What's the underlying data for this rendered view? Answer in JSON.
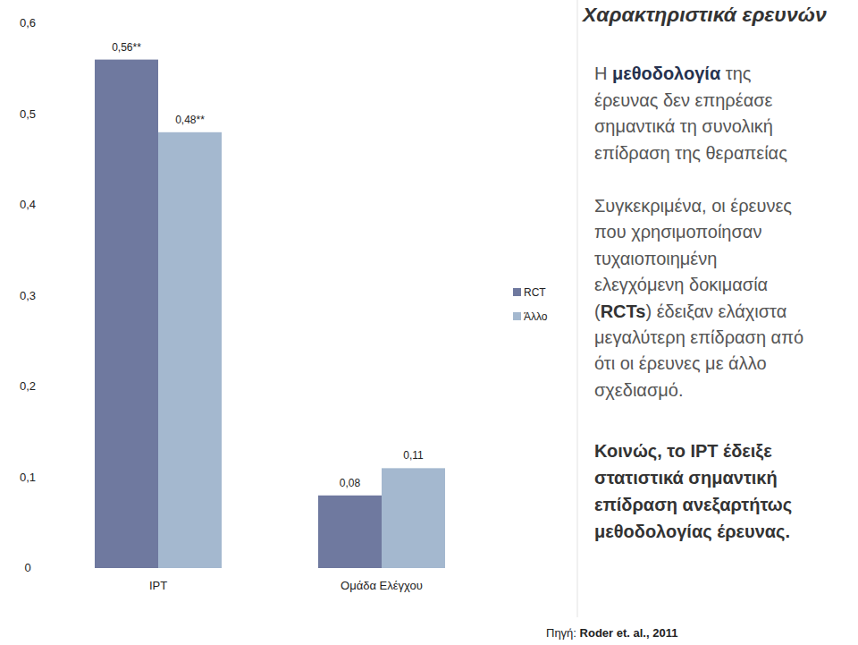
{
  "chart_data": {
    "type": "bar",
    "categories": [
      "IPT",
      "Ομάδα Ελέγχου"
    ],
    "series": [
      {
        "name": "RCT",
        "color": "#6f799f",
        "values": [
          0.56,
          0.08
        ],
        "value_labels": [
          "0,56**",
          "0,08"
        ]
      },
      {
        "name": "Άλλο",
        "color": "#a4b8cf",
        "values": [
          0.48,
          0.11
        ],
        "value_labels": [
          "0,48**",
          "0,11"
        ]
      }
    ],
    "ylim": [
      0,
      0.6
    ],
    "yticks": [
      0,
      {
        "value": 0.1,
        "label": "0,1"
      },
      {
        "value": 0.2,
        "label": "0,2"
      },
      {
        "value": 0.3,
        "label": "0,3"
      },
      {
        "value": 0.4,
        "label": "0,4"
      },
      {
        "value": 0.5,
        "label": "0,5"
      },
      {
        "value": 0.6,
        "label": "0,6"
      }
    ],
    "grid": false,
    "legend": "right",
    "data_labels": true
  },
  "text_panel": {
    "title": "Χαρακτηριστικά ερευνών",
    "paragraphs": [
      {
        "lines": [
          [
            {
              "text": "Η "
            },
            {
              "text": "μεθοδολογία",
              "bold": true
            },
            {
              "text": " της"
            }
          ],
          [
            {
              "text": "έρευνας δεν επηρέασε"
            }
          ],
          [
            {
              "text": "σημαντικά τη συνολική"
            }
          ],
          [
            {
              "text": "επίδραση της θεραπείας"
            }
          ]
        ]
      },
      {
        "lines": [
          [
            {
              "text": "Συγκεκριμένα, οι έρευνες"
            }
          ],
          [
            {
              "text": "που χρησιμοποίησαν"
            }
          ],
          [
            {
              "text": "τυχαιοποιημένη"
            }
          ],
          [
            {
              "text": "ελεγχόμενη δοκιμασία"
            }
          ],
          [
            {
              "text": "("
            },
            {
              "text": "RCTs",
              "bold": true
            },
            {
              "text": ") έδειξαν ελάχιστα"
            }
          ],
          [
            {
              "text": "μεγαλύτερη επίδραση από"
            }
          ],
          [
            {
              "text": "ότι οι έρευνες με άλλο"
            }
          ],
          [
            {
              "text": "σχεδιασμό."
            }
          ]
        ]
      },
      {
        "lines": [
          [
            {
              "text": "Κοινώς, το IPT έδειξε",
              "bold": true
            }
          ],
          [
            {
              "text": "στατιστικά σημαντική",
              "bold": true
            }
          ],
          [
            {
              "text": "επίδραση ανεξαρτήτως",
              "bold": true
            }
          ],
          [
            {
              "text": "μεθοδολογίας έρευνας.",
              "bold": true
            }
          ]
        ]
      }
    ]
  },
  "source": [
    {
      "text": "Πηγή: "
    },
    {
      "text": "Roder et. al., 2011",
      "bold": true
    }
  ]
}
